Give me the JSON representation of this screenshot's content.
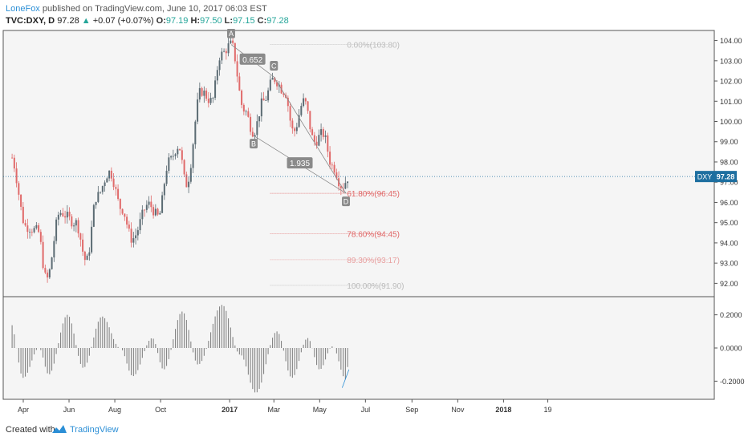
{
  "header": {
    "author": "LoneFox",
    "published_text": " published on TradingView.com, June 10, 2017 06:03 EST",
    "symbol": "TVC:DXY, D",
    "last": "97.28",
    "change_arrow": "▲",
    "change": "+0.07 (+0.07%)",
    "o_label": "O:",
    "o_value": "97.19",
    "h_label": "H:",
    "h_value": "97.50",
    "l_label": "L:",
    "l_value": "97.15",
    "c_label": "C:",
    "c_value": "97.28"
  },
  "footer": {
    "created_with": "Created with",
    "brand": "TradingView"
  },
  "chart_data": {
    "type": "candlestick",
    "price_axis": {
      "ticks": [
        "104.00",
        "103.00",
        "102.00",
        "101.00",
        "100.00",
        "99.00",
        "98.00",
        "97.00",
        "96.00",
        "95.00",
        "94.00",
        "93.00",
        "92.00"
      ],
      "range": [
        91.5,
        104.3
      ]
    },
    "last_price_label": {
      "symbol": "DXY",
      "value": "97.28",
      "price": 97.28
    },
    "time_axis": {
      "ticks": [
        {
          "label": "Apr",
          "bold": false
        },
        {
          "label": "Jun",
          "bold": false
        },
        {
          "label": "Aug",
          "bold": false
        },
        {
          "label": "Oct",
          "bold": false
        },
        {
          "label": "2017",
          "bold": true
        },
        {
          "label": "Mar",
          "bold": false
        },
        {
          "label": "May",
          "bold": false
        },
        {
          "label": "Jul",
          "bold": false
        },
        {
          "label": "Sep",
          "bold": false
        },
        {
          "label": "Nov",
          "bold": false
        },
        {
          "label": "2018",
          "bold": true
        },
        {
          "label": "19",
          "bold": false
        }
      ]
    },
    "price_path": [
      [
        "2016-03-15",
        98.3
      ],
      [
        "2016-04-05",
        94.8
      ],
      [
        "2016-04-20",
        94.6
      ],
      [
        "2016-05-02",
        92.2
      ],
      [
        "2016-05-20",
        95.5
      ],
      [
        "2016-06-10",
        95.0
      ],
      [
        "2016-06-24",
        93.1
      ],
      [
        "2016-07-08",
        96.3
      ],
      [
        "2016-07-25",
        97.5
      ],
      [
        "2016-08-10",
        95.7
      ],
      [
        "2016-08-24",
        94.2
      ],
      [
        "2016-09-15",
        95.9
      ],
      [
        "2016-09-28",
        95.3
      ],
      [
        "2016-10-12",
        98.0
      ],
      [
        "2016-10-25",
        98.8
      ],
      [
        "2016-11-04",
        96.9
      ],
      [
        "2016-11-24",
        101.5
      ],
      [
        "2016-12-08",
        101.0
      ],
      [
        "2016-12-20",
        103.3
      ],
      [
        "2017-01-03",
        103.8
      ],
      [
        "2017-01-20",
        100.6
      ],
      [
        "2017-02-02",
        99.5
      ],
      [
        "2017-02-15",
        101.0
      ],
      [
        "2017-03-01",
        102.1
      ],
      [
        "2017-03-15",
        101.5
      ],
      [
        "2017-03-27",
        99.5
      ],
      [
        "2017-04-10",
        101.0
      ],
      [
        "2017-04-24",
        99.0
      ],
      [
        "2017-05-05",
        99.4
      ],
      [
        "2017-05-18",
        97.8
      ],
      [
        "2017-05-31",
        96.8
      ],
      [
        "2017-06-09",
        97.28
      ]
    ],
    "pattern": {
      "points": [
        {
          "label": "A",
          "date": "2017-01-03",
          "price": 103.8
        },
        {
          "label": "B",
          "date": "2017-02-02",
          "price": 99.3
        },
        {
          "label": "C",
          "date": "2017-03-01",
          "price": 102.2
        },
        {
          "label": "D",
          "date": "2017-06-05",
          "price": 96.45
        }
      ],
      "ratios": [
        {
          "text": "0.652",
          "between": [
            "A",
            "C"
          ]
        },
        {
          "text": "1.935",
          "between": [
            "B",
            "D"
          ]
        }
      ]
    },
    "fib_levels": [
      {
        "text": "0.00%(103.80)",
        "price": 103.8,
        "color": "#bbbbbb"
      },
      {
        "text": "61.80%(96.45)",
        "price": 96.45,
        "color": "#e06666"
      },
      {
        "text": "78.60%(94.45)",
        "price": 94.45,
        "color": "#e06666"
      },
      {
        "text": "89.30%(93.17)",
        "price": 93.17,
        "color": "#e8a0a0"
      },
      {
        "text": "100.00%(91.90)",
        "price": 91.9,
        "color": "#bbbbbb"
      }
    ],
    "oscillator": {
      "ticks": [
        "0.2000",
        "0.0000",
        "-0.2000"
      ],
      "range": [
        -0.29,
        0.29
      ],
      "path": [
        [
          "2016-03-15",
          0.15
        ],
        [
          "2016-04-01",
          -0.18
        ],
        [
          "2016-04-22",
          0.0
        ],
        [
          "2016-05-05",
          -0.16
        ],
        [
          "2016-05-30",
          0.2
        ],
        [
          "2016-06-20",
          -0.12
        ],
        [
          "2016-07-15",
          0.19
        ],
        [
          "2016-08-08",
          0.0
        ],
        [
          "2016-08-25",
          -0.17
        ],
        [
          "2016-09-20",
          0.06
        ],
        [
          "2016-10-05",
          -0.13
        ],
        [
          "2016-10-30",
          0.22
        ],
        [
          "2016-11-20",
          -0.1
        ],
        [
          "2016-12-22",
          0.26
        ],
        [
          "2017-01-15",
          -0.04
        ],
        [
          "2017-02-05",
          -0.27
        ],
        [
          "2017-03-05",
          0.1
        ],
        [
          "2017-03-25",
          -0.18
        ],
        [
          "2017-04-15",
          0.06
        ],
        [
          "2017-05-01",
          -0.13
        ],
        [
          "2017-05-18",
          0.01
        ],
        [
          "2017-06-05",
          -0.19
        ],
        [
          "2017-06-09",
          -0.06
        ]
      ],
      "divergence": [
        [
          "2017-05-31",
          -0.24
        ],
        [
          "2017-06-09",
          -0.13
        ]
      ]
    },
    "colors": {
      "up": "#5b6b73",
      "down": "#e06a6a",
      "last_price": "#1e6fa0",
      "link": "#2c8fd6"
    }
  }
}
